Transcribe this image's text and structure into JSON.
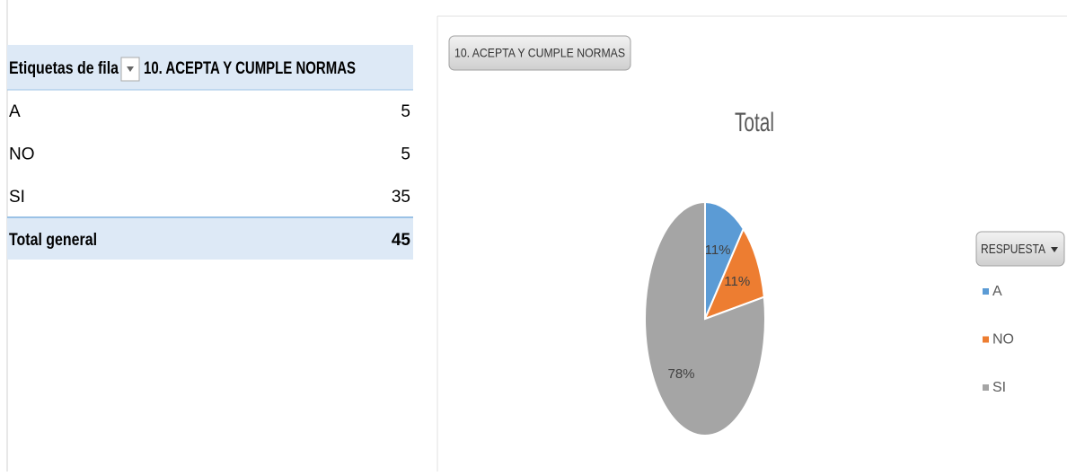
{
  "table": {
    "headers": [
      "Etiquetas de fila",
      "10. ACEPTA Y CUMPLE NORMAS"
    ],
    "rows": [
      [
        "A",
        5
      ],
      [
        "NO",
        5
      ],
      [
        "SI",
        35
      ]
    ],
    "total": [
      "Total general",
      45
    ]
  },
  "chart_data": {
    "type": "pie",
    "field_button": "10. ACEPTA Y CUMPLE NORMAS",
    "title": "Total",
    "legend_title": "RESPUESTA",
    "categories": [
      "A",
      "NO",
      "SI"
    ],
    "values": [
      11,
      11,
      78
    ],
    "value_labels": [
      "11%",
      "11%",
      "78%"
    ],
    "colors": [
      "#5b9bd5",
      "#ed7d31",
      "#a5a5a5"
    ]
  }
}
